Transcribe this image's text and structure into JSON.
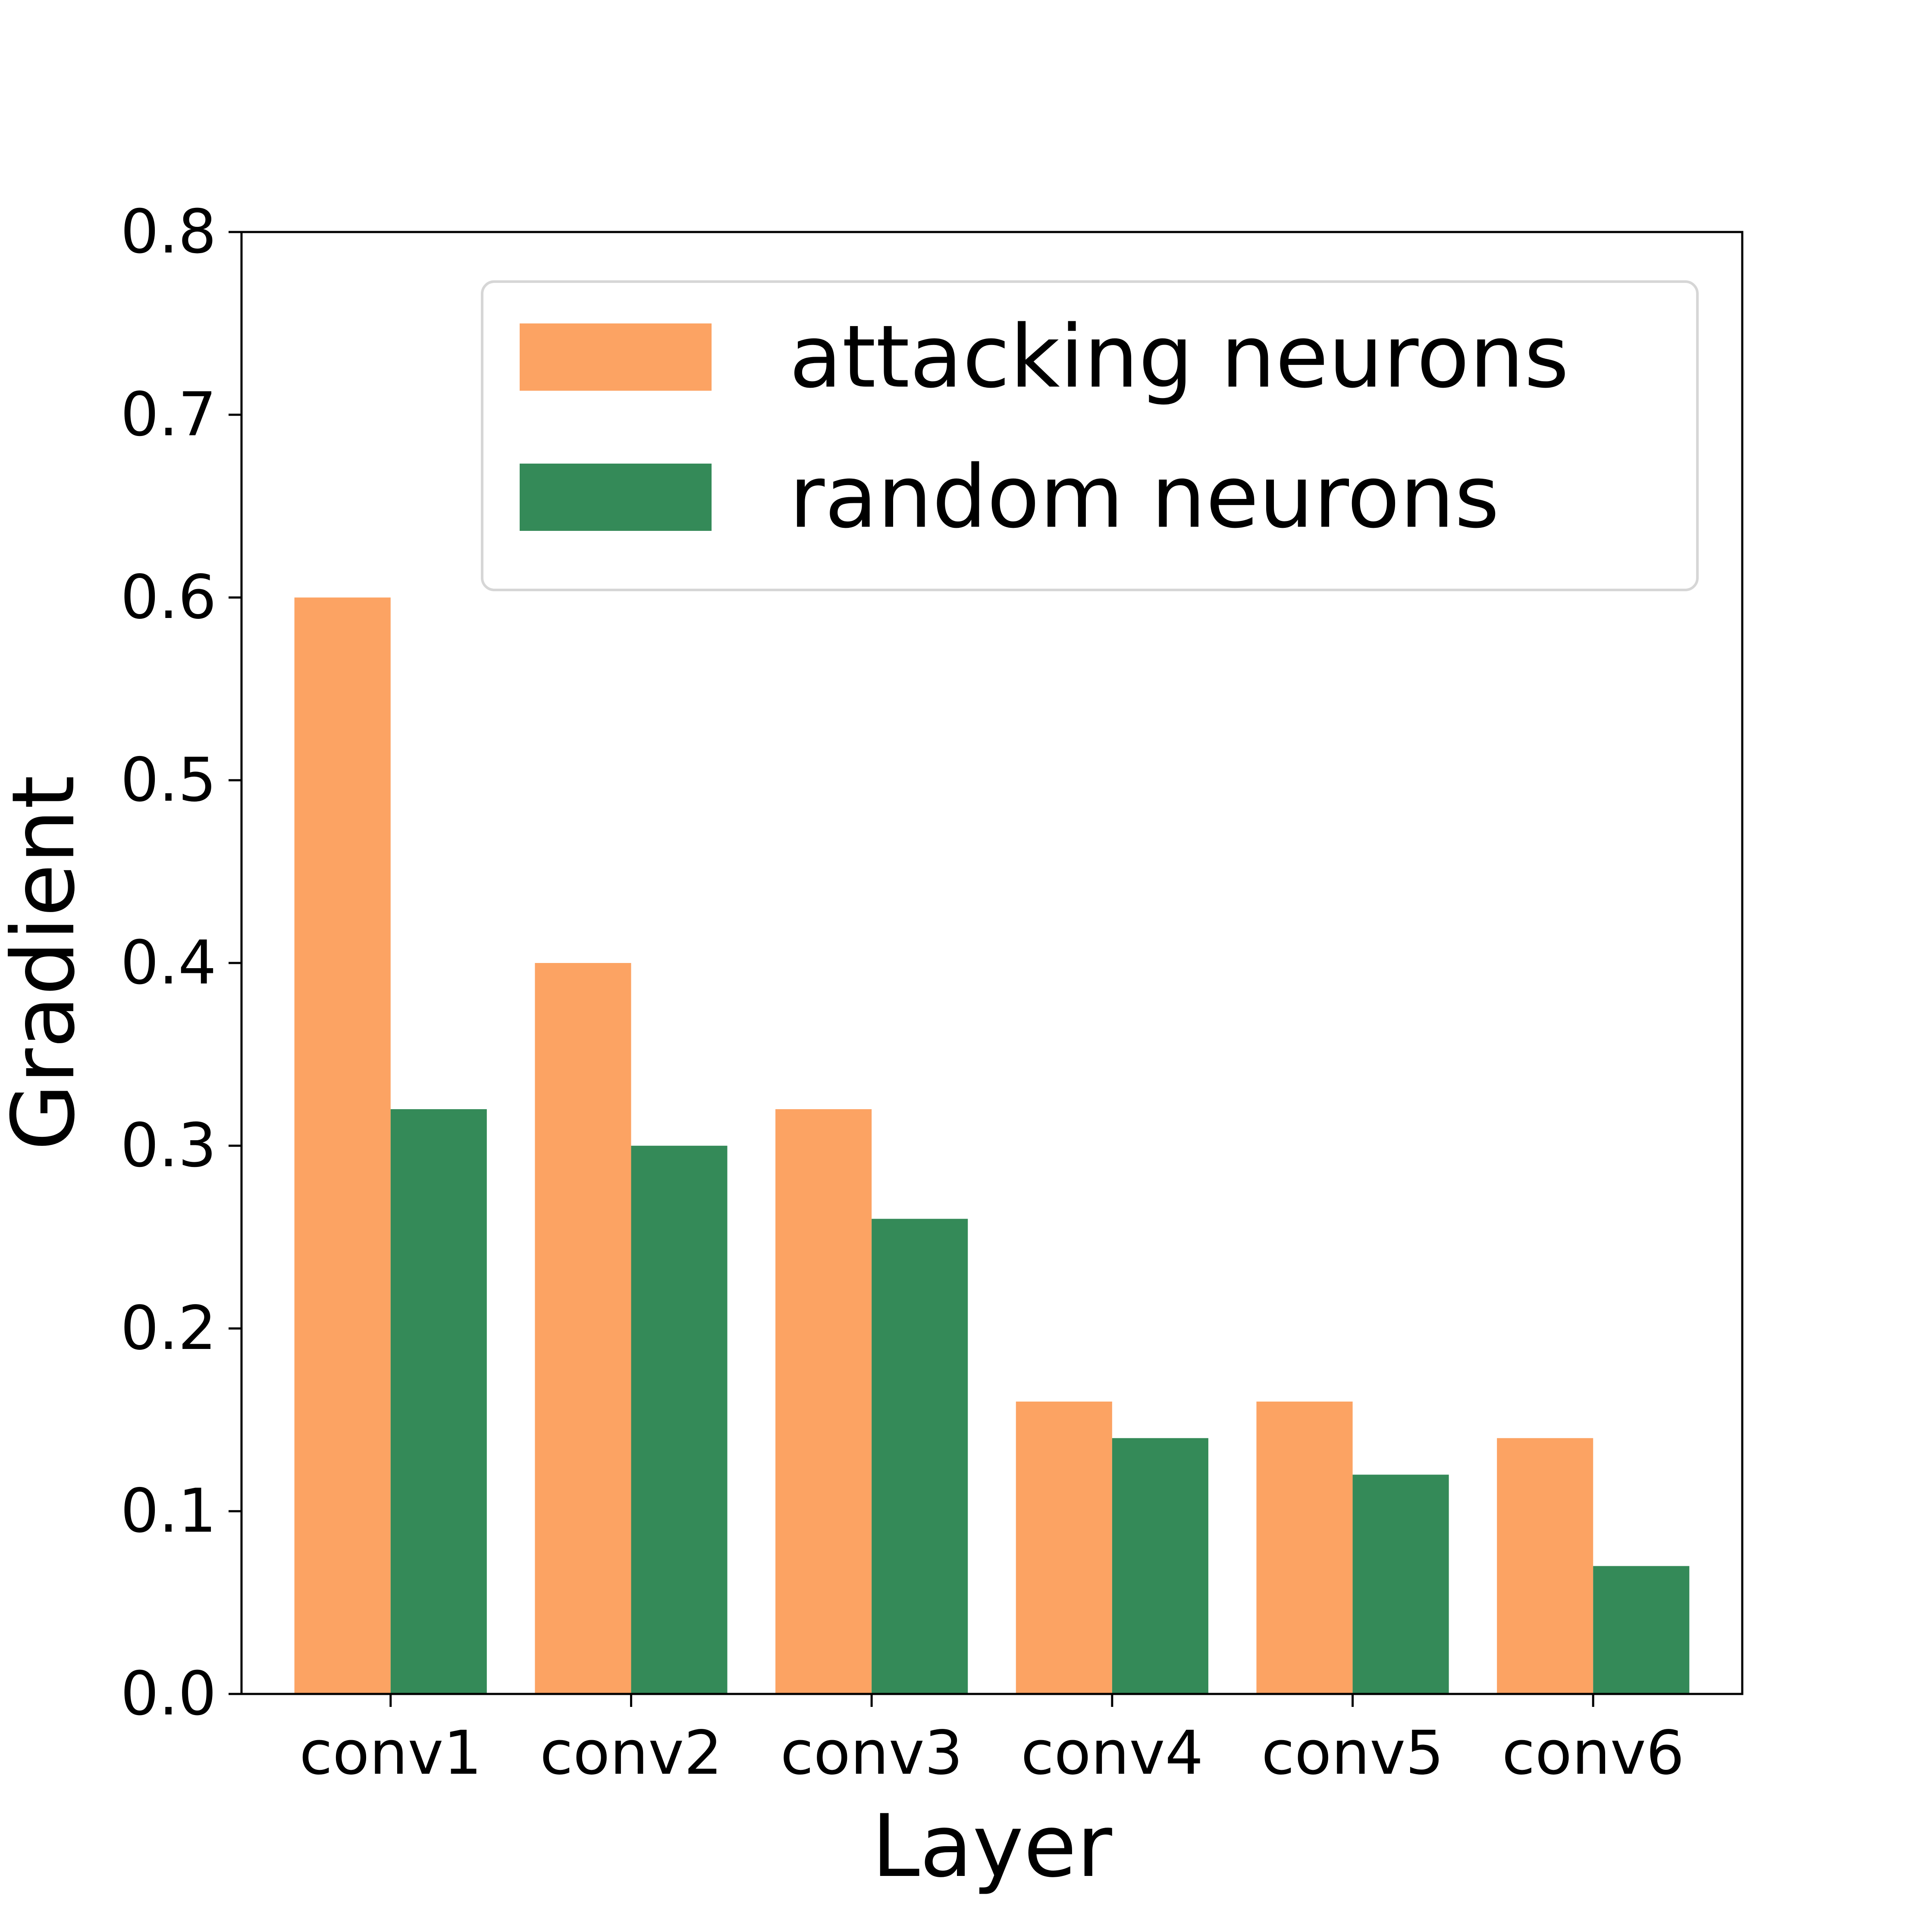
{
  "chart_data": {
    "type": "bar",
    "title": "",
    "xlabel": "Layer",
    "ylabel": "Gradient",
    "categories": [
      "conv1",
      "conv2",
      "conv3",
      "conv4",
      "conv5",
      "conv6"
    ],
    "series": [
      {
        "name": "attacking neurons",
        "color": "#fca363",
        "values": [
          0.6,
          0.4,
          0.32,
          0.16,
          0.16,
          0.14
        ]
      },
      {
        "name": "random neurons",
        "color": "#348a58",
        "values": [
          0.32,
          0.3,
          0.26,
          0.14,
          0.12,
          0.07
        ]
      }
    ],
    "ylim": [
      0,
      0.8
    ],
    "yticks": [
      "0.0",
      "0.1",
      "0.2",
      "0.3",
      "0.4",
      "0.5",
      "0.6",
      "0.7",
      "0.8"
    ],
    "grid": false,
    "legend_position": "top-right"
  }
}
